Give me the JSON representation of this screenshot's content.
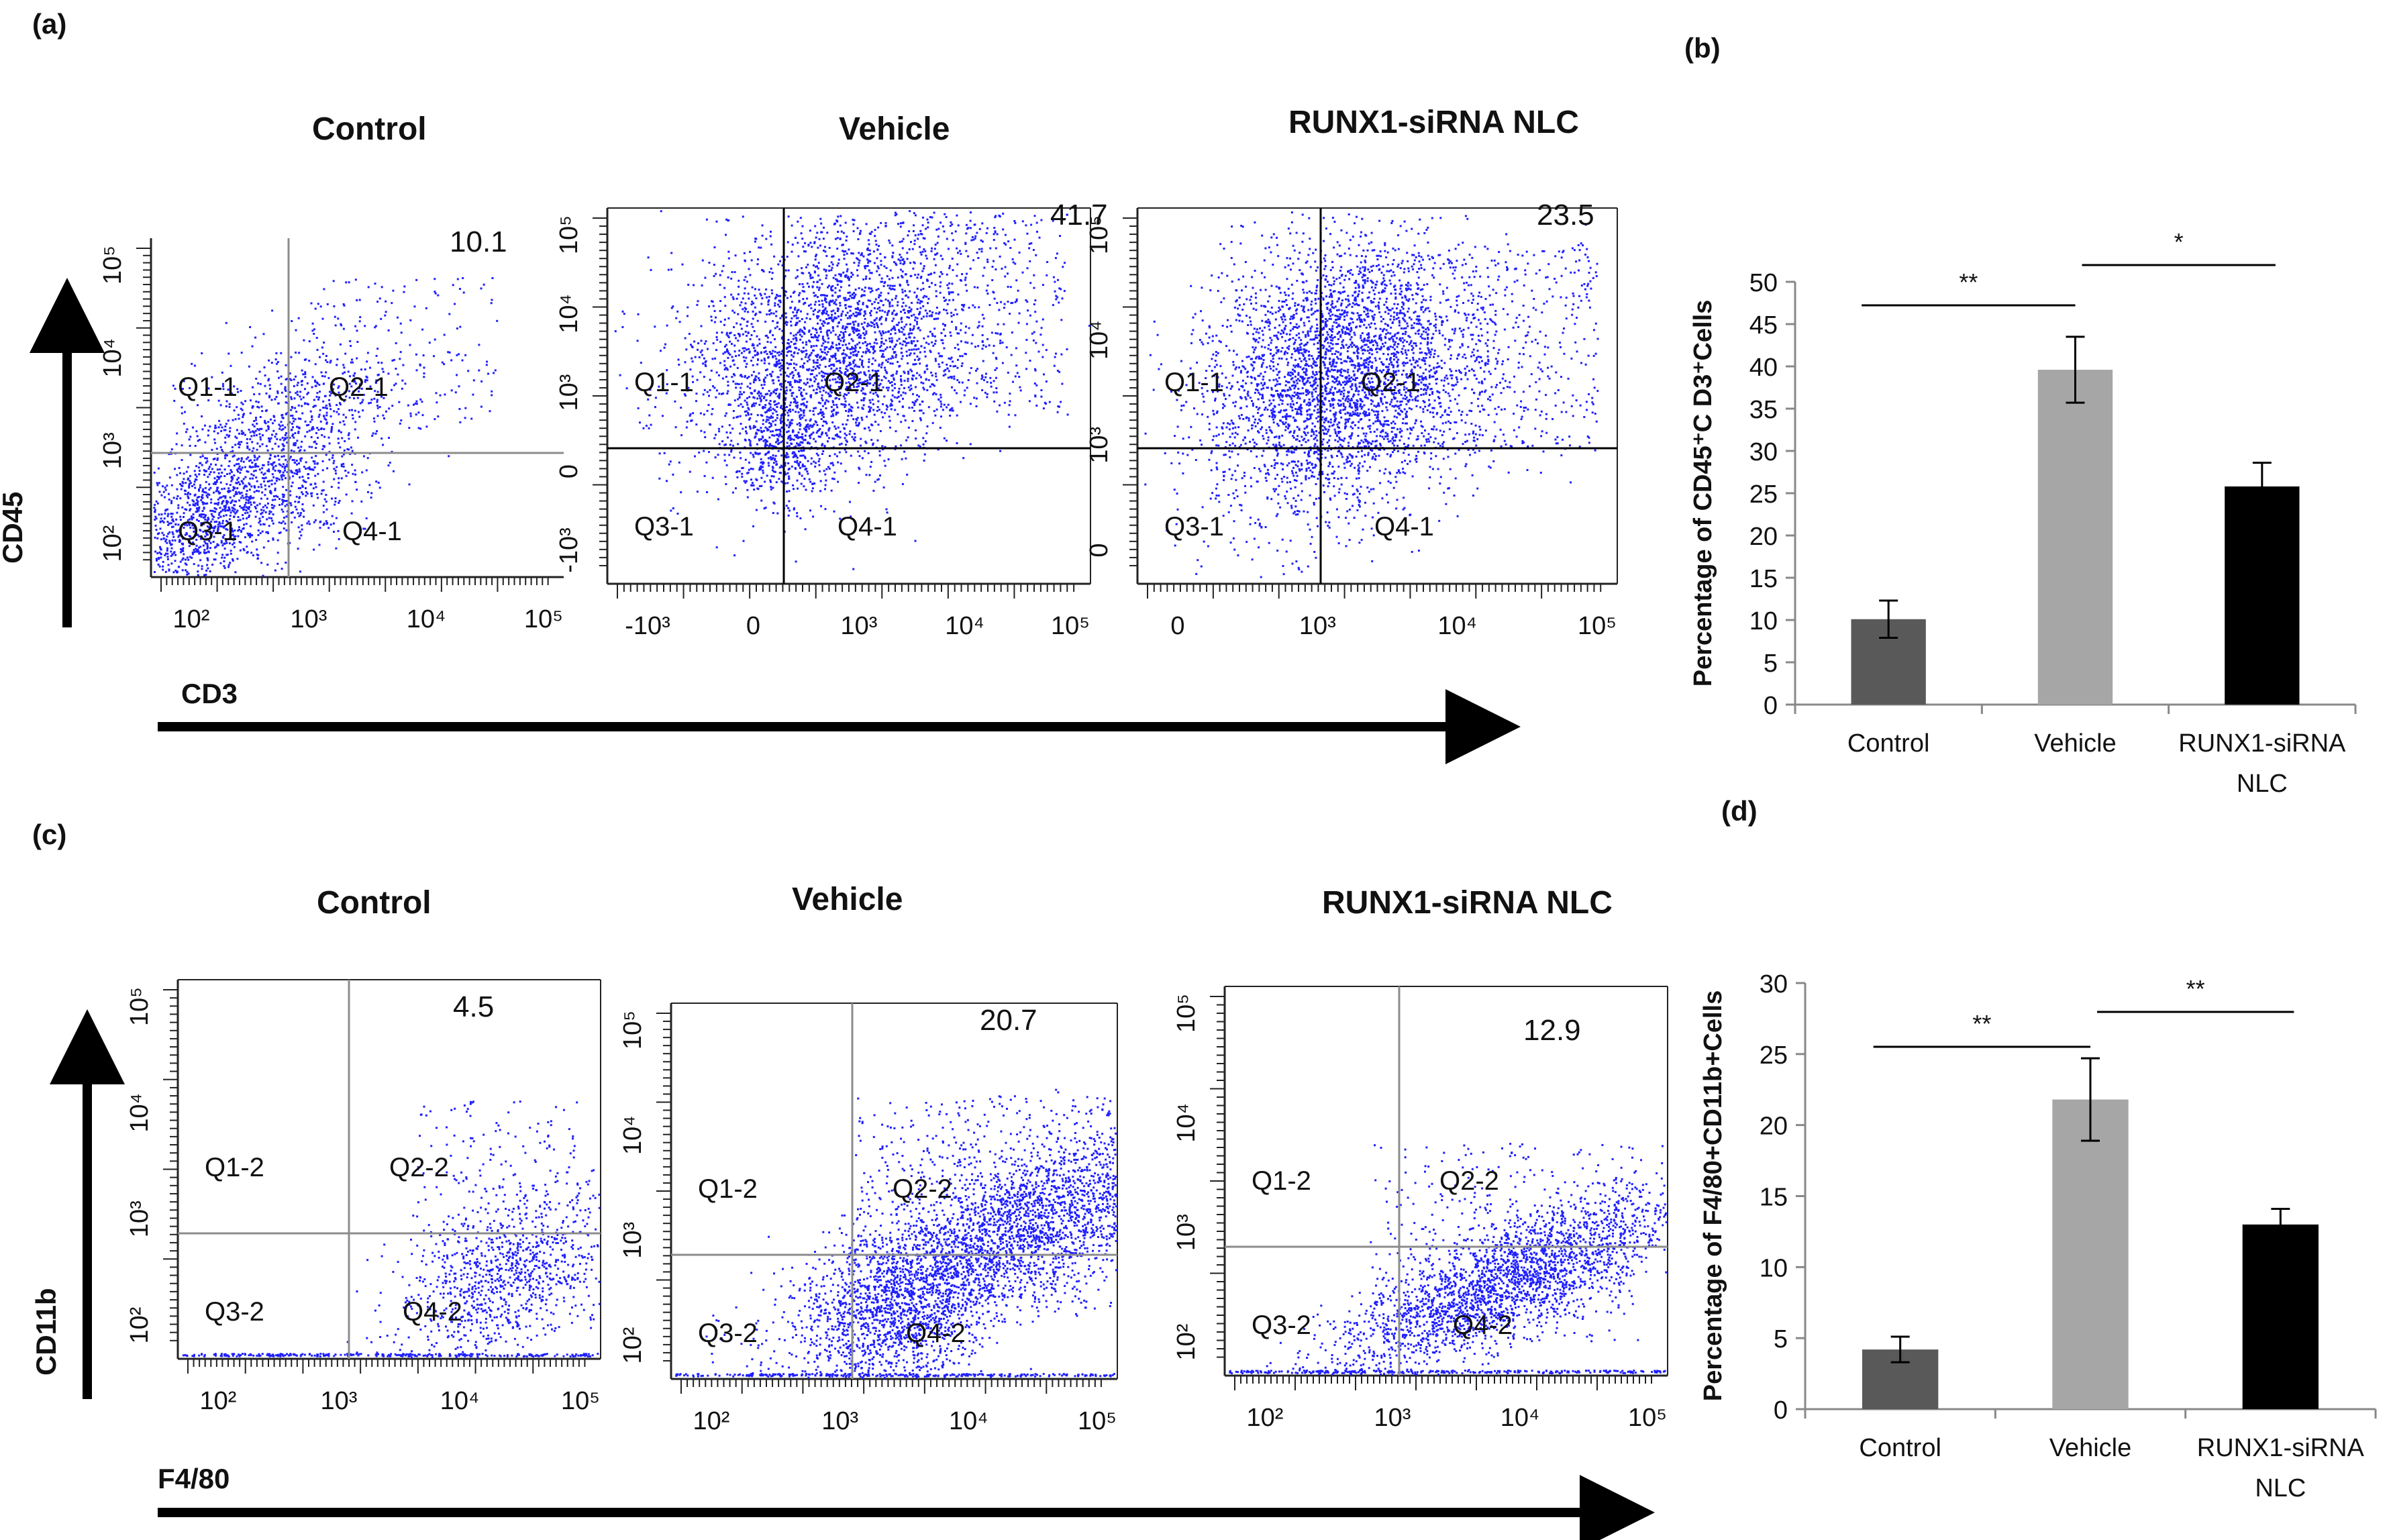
{
  "panels": {
    "a": "(a)",
    "b": "(b)",
    "c": "(c)",
    "d": "(d)"
  },
  "flow_a": {
    "titles": [
      "Control",
      "Vehicle",
      "RUNX1-siRNA NLC"
    ],
    "y_axis_label": "CD45",
    "x_axis_label": "CD3",
    "percent_q2": [
      "10.1",
      "41.7",
      "23.5"
    ],
    "quadrants": [
      "Q1-1",
      "Q2-1",
      "Q3-1",
      "Q4-1"
    ],
    "x_ticks_plot1": [
      "10²",
      "10³",
      "10⁴",
      "10⁵"
    ],
    "x_ticks_plot23": [
      "-10³",
      "0",
      "10³",
      "10⁴",
      "10⁵"
    ],
    "x_ticks_plot3": [
      "0",
      "10³",
      "10⁴",
      "10⁵"
    ],
    "y_ticks_plot1": [
      "10²",
      "10³",
      "10⁴",
      "10⁵"
    ],
    "y_ticks_plot2": [
      "-10³",
      "0",
      "10³",
      "10⁴",
      "10⁵"
    ],
    "y_ticks_plot3": [
      "0",
      "10³",
      "10⁴",
      "10⁵"
    ]
  },
  "flow_c": {
    "titles": [
      "Control",
      "Vehicle",
      "RUNX1-siRNA NLC"
    ],
    "y_axis_label": "CD11b",
    "x_axis_label": "F4/80",
    "percent_q2": [
      "4.5",
      "20.7",
      "12.9"
    ],
    "quadrants": [
      "Q1-2",
      "Q2-2",
      "Q3-2",
      "Q4-2"
    ],
    "x_ticks": [
      "10²",
      "10³",
      "10⁴",
      "10⁵"
    ],
    "y_ticks": [
      "10²",
      "10³",
      "10⁴",
      "10⁵"
    ]
  },
  "chart_data": [
    {
      "type": "bar",
      "title": "",
      "ylabel": "Percentage of  CD45⁺C D3⁺Cells",
      "xlabel": "",
      "categories": [
        "Control",
        "Vehicle",
        "RUNX1-siRNA NLC"
      ],
      "values": [
        10.1,
        39.6,
        25.8
      ],
      "errors": [
        2.2,
        3.9,
        2.8
      ],
      "colors": [
        "#595959",
        "#a6a6a6",
        "#000000"
      ],
      "ylim": [
        0,
        50
      ],
      "yticks": [
        0,
        5,
        10,
        15,
        20,
        25,
        30,
        35,
        40,
        45,
        50
      ],
      "significance": [
        {
          "label": "**",
          "from": 0,
          "to": 1
        },
        {
          "label": "*",
          "from": 1,
          "to": 2
        }
      ]
    },
    {
      "type": "bar",
      "title": "",
      "ylabel": "Percentage of F4/80+CD11b+Cells",
      "xlabel": "",
      "categories": [
        "Control",
        "Vehicle",
        "RUNX1-siRNA NLC"
      ],
      "values": [
        4.2,
        21.8,
        13.0
      ],
      "errors": [
        0.9,
        2.9,
        1.1
      ],
      "colors": [
        "#595959",
        "#a6a6a6",
        "#000000"
      ],
      "ylim": [
        0,
        30
      ],
      "yticks": [
        0,
        5,
        10,
        15,
        20,
        25,
        30
      ],
      "significance": [
        {
          "label": "**",
          "from": 0,
          "to": 1
        },
        {
          "label": "**",
          "from": 1,
          "to": 2
        }
      ]
    }
  ]
}
